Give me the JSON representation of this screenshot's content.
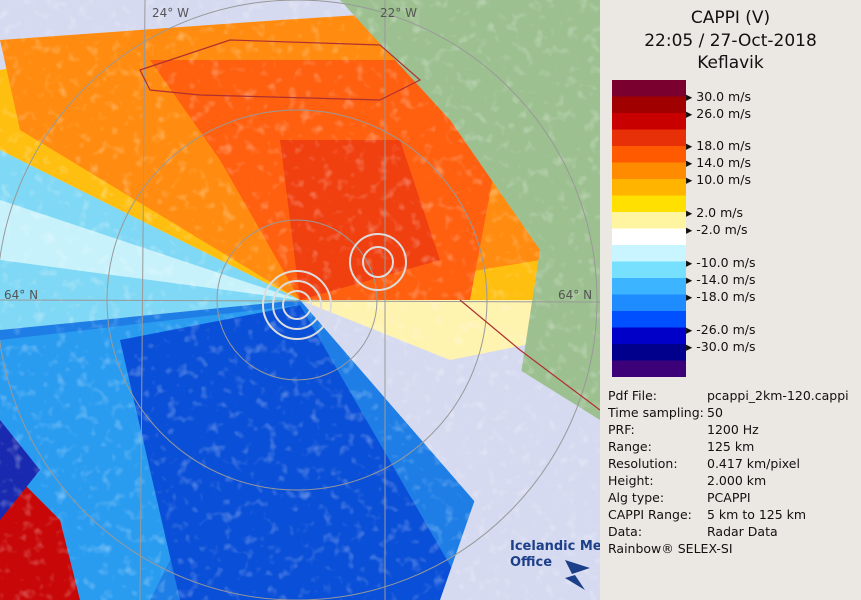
{
  "header": {
    "title": "CAPPI (V)",
    "time": "22:05 / 27-Oct-2018",
    "site": "Keflavik"
  },
  "legend": {
    "labels": [
      "30.0 m/s",
      "26.0 m/s",
      "18.0 m/s",
      "14.0 m/s",
      "10.0 m/s",
      "2.0 m/s",
      "-2.0 m/s",
      "-10.0 m/s",
      "-14.0 m/s",
      "-18.0 m/s",
      "-26.0 m/s",
      "-30.0 m/s"
    ]
  },
  "info": {
    "rows": [
      [
        "Pdf File:",
        "pcappi_2km-120.cappi"
      ],
      [
        "Time sampling:",
        "50"
      ],
      [
        "PRF:",
        "1200 Hz"
      ],
      [
        "Range:",
        "125 km"
      ],
      [
        "Resolution:",
        "0.417 km/pixel"
      ],
      [
        "Height:",
        "2.000 km"
      ],
      [
        "Alg type:",
        "PCAPPI"
      ],
      [
        "CAPPI Range:",
        "5 km to 125 km"
      ],
      [
        "Data:",
        "Radar Data"
      ]
    ]
  },
  "footer": "Rainbow® SELEX-SI",
  "logo": {
    "line1": "Icelandic Met",
    "line2": "Office"
  },
  "map_labels": [
    "24° W",
    "22° W",
    "64° N",
    "64° N"
  ]
}
